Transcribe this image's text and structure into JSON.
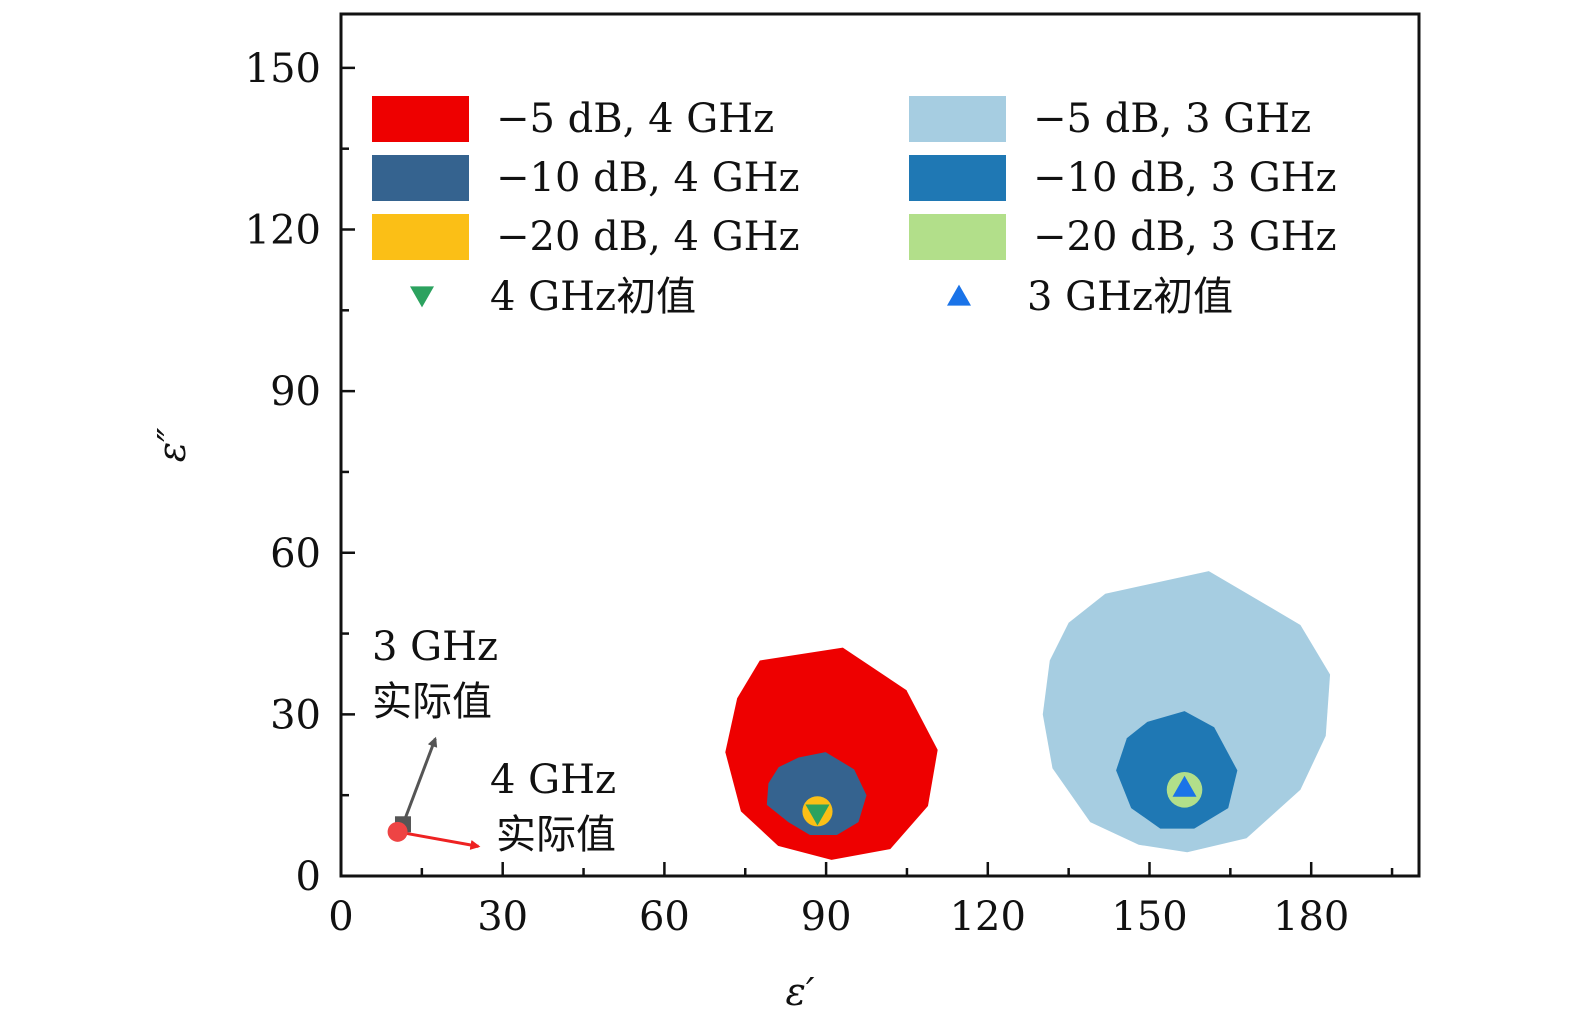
{
  "chart_data": {
    "type": "scatter",
    "title": "",
    "xlabel": "ε′",
    "ylabel": "ε″",
    "xlim": [
      0,
      200
    ],
    "ylim": [
      0,
      160
    ],
    "xticks": [
      0,
      30,
      60,
      90,
      120,
      150,
      180
    ],
    "yticks": [
      0,
      30,
      60,
      90,
      120,
      150
    ],
    "grid": false,
    "legend_position": "top",
    "regions": [
      {
        "name": "−5 dB, 4 GHz",
        "color": "#ee0000",
        "polygon": [
          [
            77.7,
            40
          ],
          [
            93.1,
            42.4
          ],
          [
            104.9,
            34.5
          ],
          [
            110.7,
            23.4
          ],
          [
            108.9,
            13.0
          ],
          [
            101.9,
            5.0
          ],
          [
            91.0,
            3.0
          ],
          [
            81.1,
            5.6
          ],
          [
            74.2,
            12.0
          ],
          [
            71.3,
            23.0
          ],
          [
            73.5,
            33.0
          ]
        ]
      },
      {
        "name": "−10 dB, 4 GHz",
        "color": "#35638f",
        "polygon": [
          [
            84.9,
            22.0
          ],
          [
            89.9,
            23.0
          ],
          [
            95.2,
            19.8
          ],
          [
            97.5,
            15.0
          ],
          [
            96.0,
            10.0
          ],
          [
            92.0,
            7.6
          ],
          [
            87.0,
            7.6
          ],
          [
            83.0,
            10.0
          ],
          [
            79.0,
            13.2
          ],
          [
            79.3,
            17.2
          ],
          [
            81.2,
            20.2
          ]
        ]
      },
      {
        "name": "−20 dB, 4 GHz",
        "color": "#fbbf16",
        "circle": {
          "cx": 88.4,
          "cy": 12.0,
          "r": 2.8
        }
      },
      {
        "name": "−5 dB, 3 GHz",
        "color": "#a6cde1",
        "polygon": [
          [
            141.8,
            52.4
          ],
          [
            161.0,
            56.6
          ],
          [
            178.0,
            46.6
          ],
          [
            183.5,
            37.4
          ],
          [
            182.7,
            26.0
          ],
          [
            178.0,
            16.0
          ],
          [
            168.0,
            7.0
          ],
          [
            157.0,
            4.4
          ],
          [
            148.0,
            5.8
          ],
          [
            139.0,
            10.0
          ],
          [
            132.0,
            20.0
          ],
          [
            130.2,
            30.0
          ],
          [
            131.5,
            40.0
          ],
          [
            135.0,
            47.0
          ]
        ]
      },
      {
        "name": "−10 dB, 3 GHz",
        "color": "#1f78b4",
        "polygon": [
          [
            149.6,
            28.6
          ],
          [
            156.5,
            30.6
          ],
          [
            162.0,
            27.6
          ],
          [
            166.3,
            19.6
          ],
          [
            164.6,
            12.6
          ],
          [
            158.3,
            8.8
          ],
          [
            152.0,
            8.8
          ],
          [
            146.6,
            12.6
          ],
          [
            143.8,
            19.6
          ],
          [
            145.8,
            25.6
          ]
        ]
      },
      {
        "name": "−20 dB, 3 GHz",
        "color": "#b2df8a",
        "circle": {
          "cx": 156.5,
          "cy": 16.0,
          "r": 3.3
        }
      }
    ],
    "markers": [
      {
        "name": "4 GHz初值",
        "shape": "triangle-down",
        "color": "#2ca25f",
        "x": 88.4,
        "y": 11.5
      },
      {
        "name": "3 GHz初值",
        "shape": "triangle-up",
        "color": "#1a73e8",
        "x": 156.5,
        "y": 16.5
      }
    ],
    "actual_points": [
      {
        "shape": "square",
        "color": "#555555",
        "x": 11.5,
        "y": 9.6
      },
      {
        "shape": "circle",
        "color": "#ee4444",
        "x": 10.5,
        "y": 8.2
      }
    ],
    "annotations": [
      {
        "lines": [
          "3 GHz",
          "实际值"
        ],
        "arrow_color": "#555555",
        "arrow_from": [
          11.5,
          9.6
        ],
        "arrow_to": [
          17.5,
          25.5
        ]
      },
      {
        "lines": [
          "4 GHz",
          "实际值"
        ],
        "arrow_color": "#ee2222",
        "arrow_from": [
          10.5,
          8.2
        ],
        "arrow_to": [
          25.5,
          5.5
        ]
      }
    ]
  }
}
